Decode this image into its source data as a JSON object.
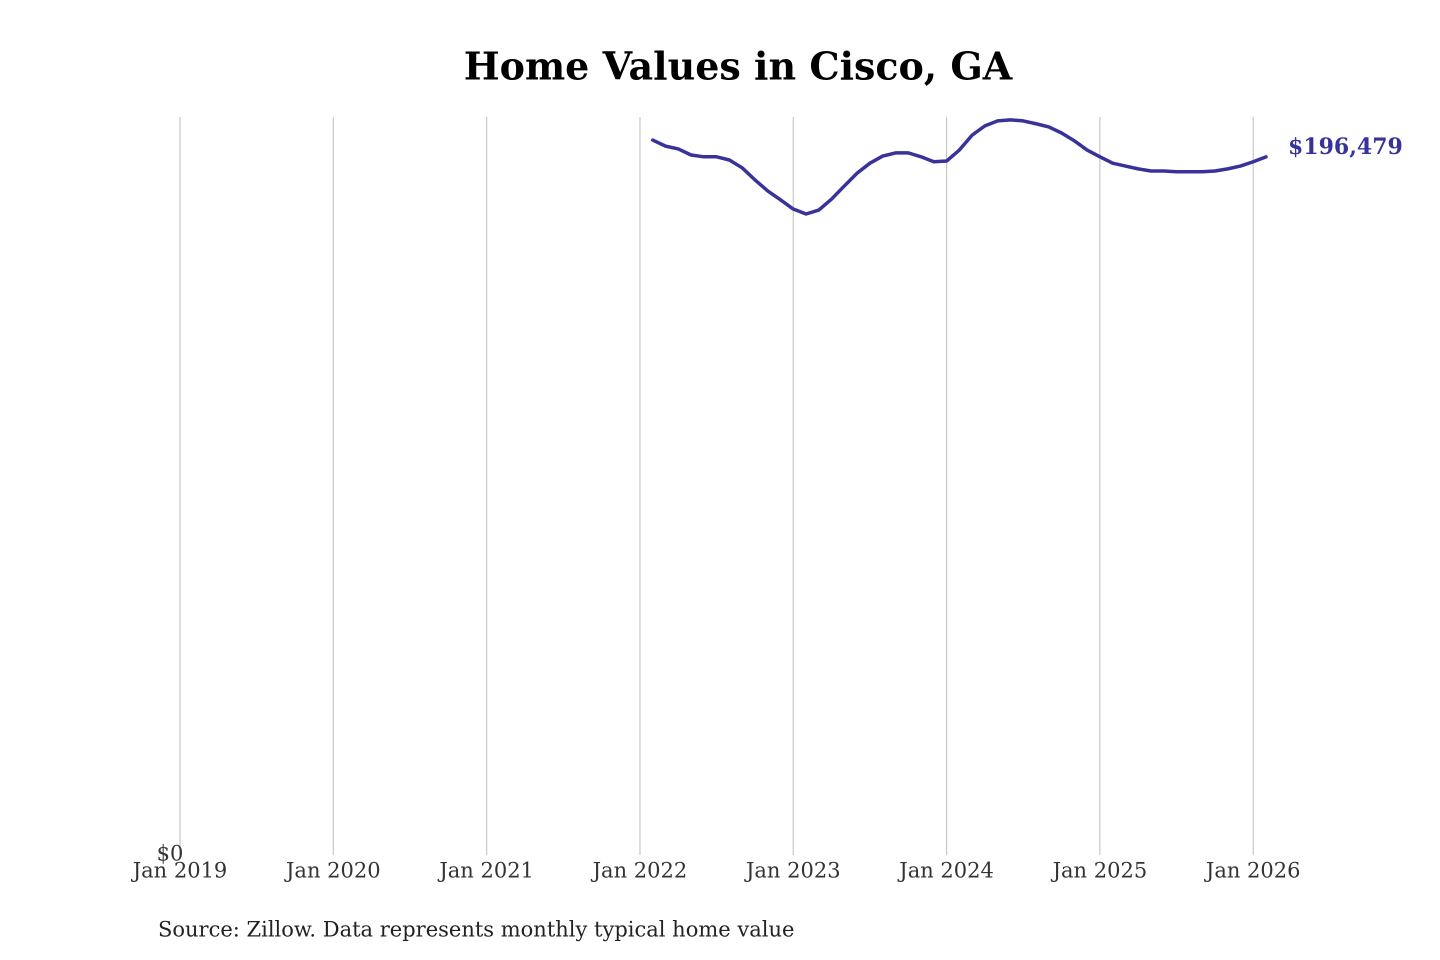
{
  "chart_data": {
    "type": "line",
    "title": "Home Values in Cisco, GA",
    "source": "Source: Zillow. Data represents monthly typical home value",
    "x": [
      "2022-02",
      "2022-03",
      "2022-04",
      "2022-05",
      "2022-06",
      "2022-07",
      "2022-08",
      "2022-09",
      "2022-10",
      "2022-11",
      "2022-12",
      "2023-01",
      "2023-02",
      "2023-03",
      "2023-04",
      "2023-05",
      "2023-06",
      "2023-07",
      "2023-08",
      "2023-09",
      "2023-10",
      "2023-11",
      "2023-12",
      "2024-01",
      "2024-02",
      "2024-03",
      "2024-04",
      "2024-05",
      "2024-06",
      "2024-07",
      "2024-08",
      "2024-09",
      "2024-10",
      "2024-11",
      "2024-12",
      "2025-01",
      "2025-02",
      "2025-03",
      "2025-04",
      "2025-05",
      "2025-06",
      "2025-07",
      "2025-08",
      "2025-09",
      "2025-10",
      "2025-11",
      "2025-12",
      "2026-01",
      "2026-02"
    ],
    "series": [
      {
        "name": "Home value",
        "color": "#38339a",
        "values": [
          201200,
          199500,
          198700,
          197000,
          196500,
          196500,
          195600,
          193400,
          190000,
          186900,
          184400,
          181800,
          180400,
          181500,
          184600,
          188300,
          191900,
          194700,
          196700,
          197600,
          197600,
          196500,
          195100,
          195300,
          198400,
          202600,
          205200,
          206600,
          206900,
          206600,
          205800,
          204900,
          203200,
          201000,
          198400,
          196500,
          194700,
          193900,
          193100,
          192500,
          192500,
          192300,
          192300,
          192300,
          192500,
          193100,
          193900,
          195100,
          196479
        ],
        "value_labels": [
          null,
          null,
          null,
          null,
          null,
          null,
          null,
          null,
          null,
          null,
          null,
          null,
          null,
          null,
          null,
          null,
          null,
          null,
          null,
          null,
          null,
          null,
          null,
          null,
          null,
          null,
          null,
          null,
          null,
          null,
          null,
          null,
          null,
          null,
          null,
          null,
          null,
          null,
          null,
          null,
          null,
          null,
          null,
          null,
          null,
          null,
          null,
          null,
          "$196,479"
        ]
      }
    ],
    "xlim": [
      "2019-01",
      "2026-02"
    ],
    "xticks": [
      {
        "value": "2019-01",
        "label": "Jan 2019"
      },
      {
        "value": "2020-01",
        "label": "Jan 2020"
      },
      {
        "value": "2021-01",
        "label": "Jan 2021"
      },
      {
        "value": "2022-01",
        "label": "Jan 2022"
      },
      {
        "value": "2023-01",
        "label": "Jan 2023"
      },
      {
        "value": "2024-01",
        "label": "Jan 2024"
      },
      {
        "value": "2025-01",
        "label": "Jan 2025"
      },
      {
        "value": "2026-01",
        "label": "Jan 2026"
      }
    ],
    "ylim": [
      0,
      207700
    ],
    "yticks": [
      {
        "value": 0,
        "label": "$0"
      }
    ],
    "grid": "x"
  }
}
